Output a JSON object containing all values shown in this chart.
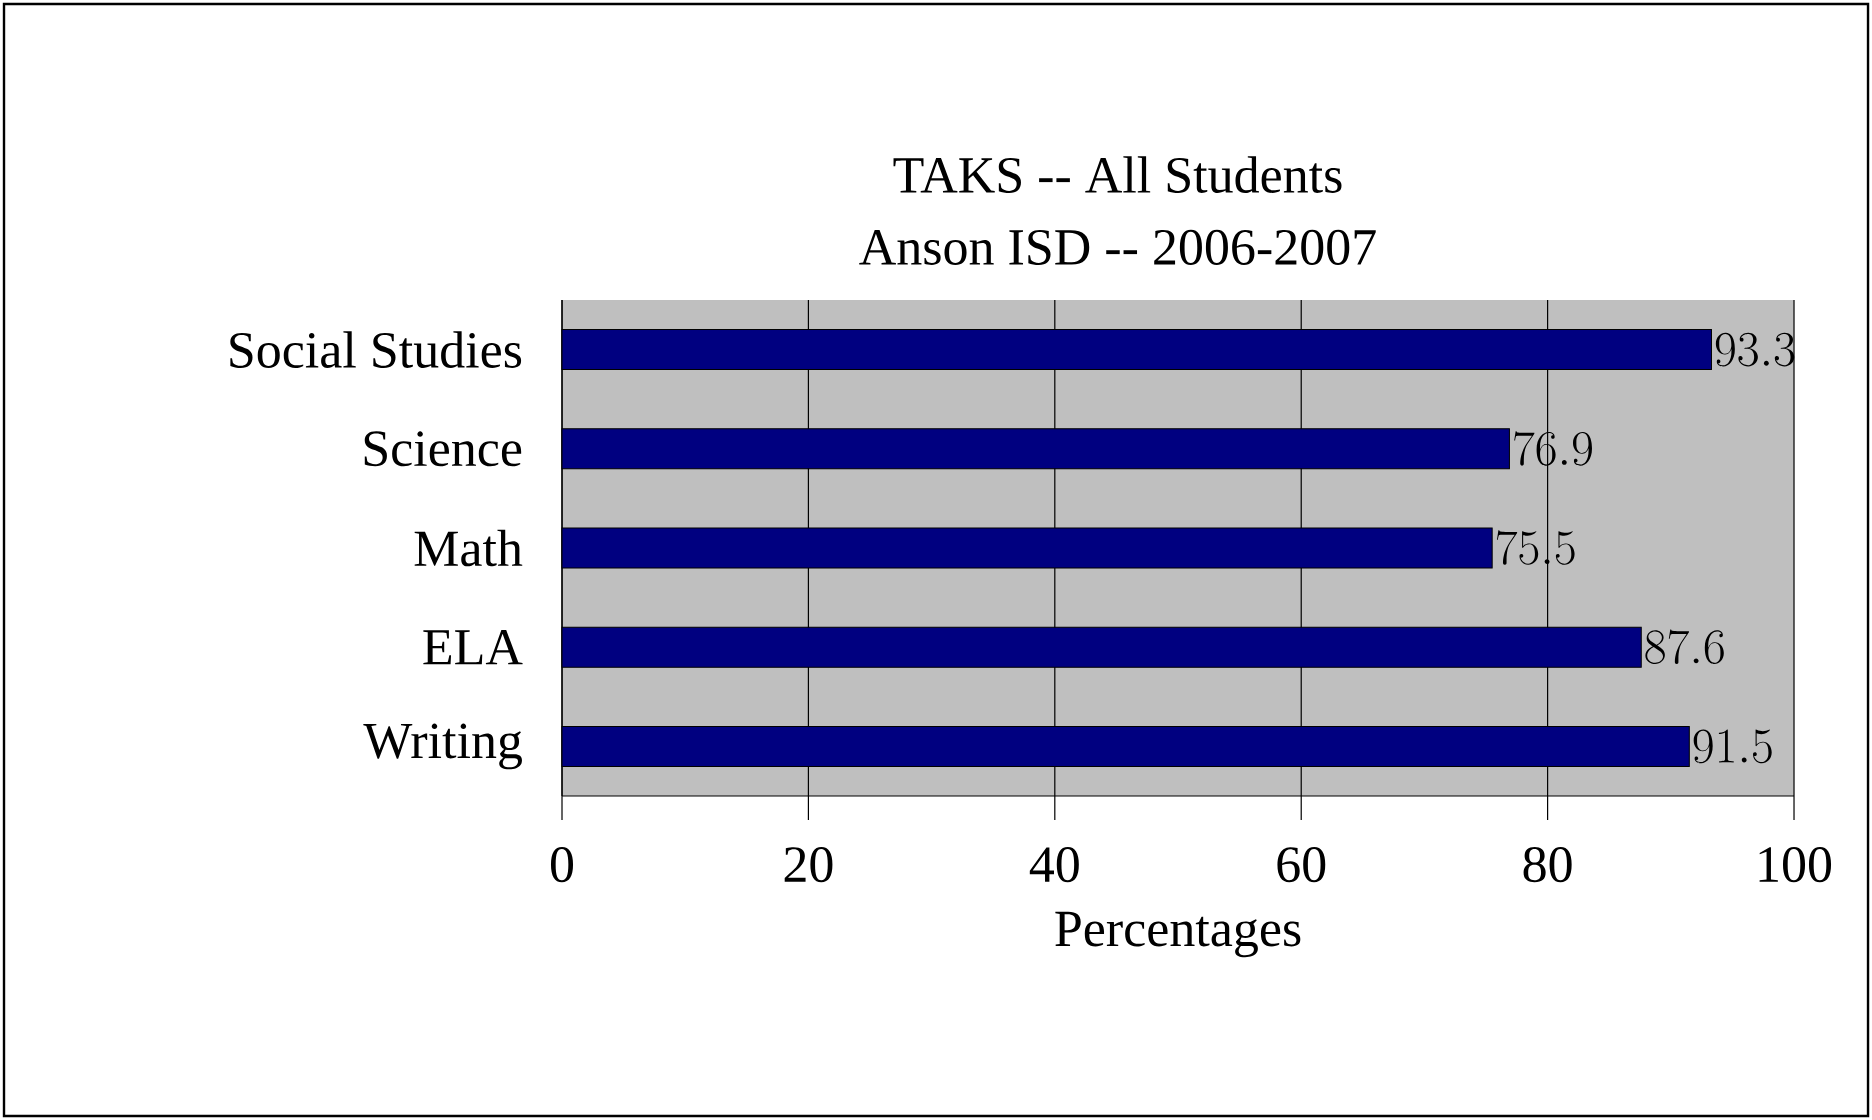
{
  "chart_data": {
    "type": "bar",
    "orientation": "horizontal",
    "title": "TAKS -- All Students",
    "subtitle": "Anson ISD -- 2006-2007",
    "xlabel": "Percentages",
    "categories": [
      "Social Studies",
      "Science",
      "Math",
      "ELA",
      "Writing"
    ],
    "values": [
      93.3,
      76.9,
      75.5,
      87.6,
      91.5
    ],
    "color": "#000080",
    "xlim": [
      0,
      100
    ],
    "xticks": [
      0,
      20,
      40,
      60,
      80,
      100
    ],
    "grid": "x",
    "data_labels": true
  }
}
